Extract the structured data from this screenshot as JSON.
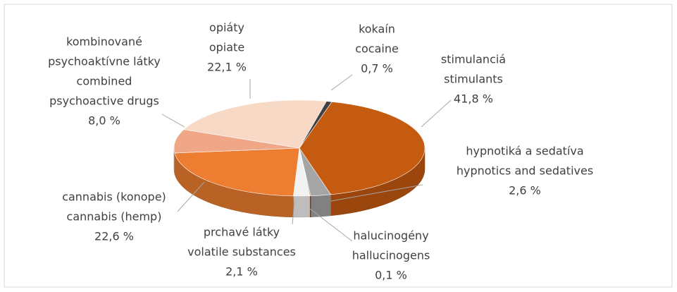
{
  "chart_data": {
    "type": "pie3d",
    "categories": [
      [
        "stimulanciá",
        "stimulants"
      ],
      [
        "hypnotiká a sedatíva",
        "hypnotics and sedatives"
      ],
      [
        "halucinogény",
        "hallucinogens"
      ],
      [
        "prchavé látky",
        "volatile substances"
      ],
      [
        "cannabis (konope)",
        "cannabis (hemp)"
      ],
      [
        "kombinované",
        "psychoaktívne látky",
        "combined",
        "psychoactive drugs"
      ],
      [
        "opiáty",
        "opiate"
      ],
      [
        "kokaín",
        "cocaine"
      ]
    ],
    "values": [
      41.8,
      2.6,
      0.1,
      2.1,
      22.6,
      8.0,
      22.1,
      0.7
    ],
    "value_labels": [
      "41,8 %",
      "2,6 %",
      "0,1 %",
      "2,1 %",
      "22,6 %",
      "8,0 %",
      "22,1 %",
      "0,7 %"
    ],
    "colors": [
      "#c55a11",
      "#a5a5a5",
      "#7f3f0f",
      "#f2f2f2",
      "#ed7d31",
      "#f0a788",
      "#f8d9c6",
      "#404040"
    ]
  }
}
